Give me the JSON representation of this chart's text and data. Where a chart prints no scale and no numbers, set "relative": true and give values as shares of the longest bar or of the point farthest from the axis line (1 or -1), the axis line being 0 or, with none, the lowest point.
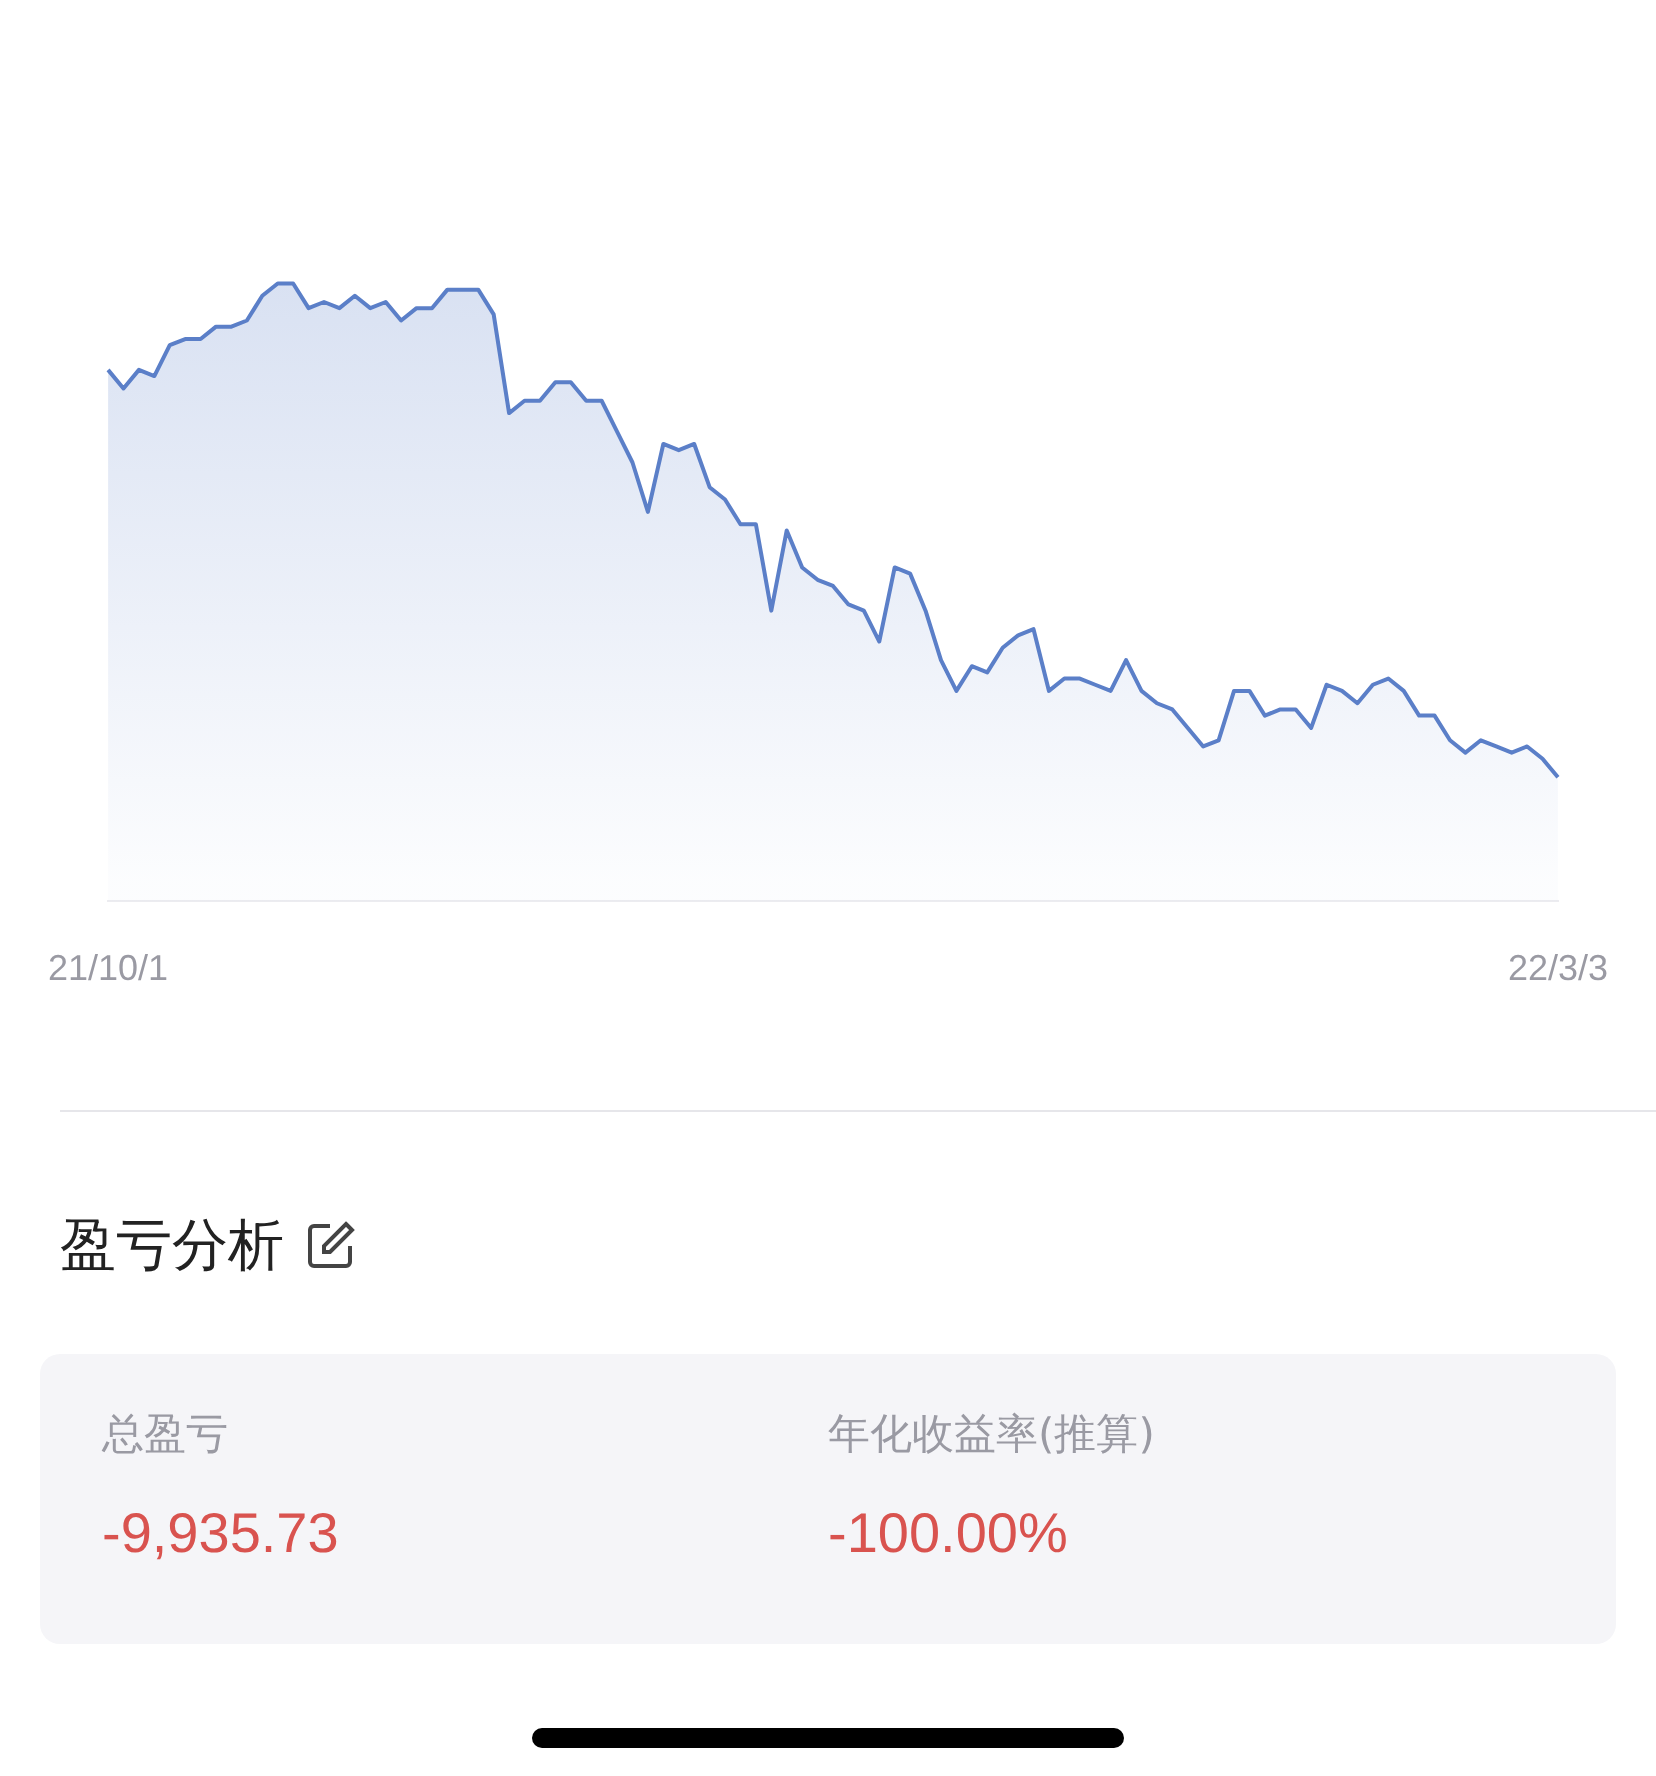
{
  "chart_data": [
    {
      "type": "area",
      "relative": true,
      "color": "#5b7fc8",
      "legend": false,
      "categories": [
        "21/10/1",
        null,
        null,
        null,
        null,
        null,
        null,
        null,
        null,
        null,
        null,
        null,
        null,
        null,
        null,
        null,
        null,
        null,
        null,
        null,
        null,
        null,
        null,
        null,
        null,
        null,
        null,
        null,
        null,
        null,
        null,
        null,
        null,
        null,
        null,
        null,
        null,
        null,
        null,
        null,
        null,
        null,
        null,
        null,
        null,
        null,
        null,
        null,
        null,
        null,
        null,
        null,
        null,
        null,
        null,
        null,
        null,
        null,
        null,
        null,
        null,
        null,
        null,
        null,
        null,
        null,
        null,
        null,
        null,
        null,
        null,
        null,
        null,
        null,
        null,
        null,
        null,
        null,
        null,
        null,
        null,
        null,
        null,
        null,
        null,
        null,
        null,
        null,
        null,
        null,
        null,
        null,
        null,
        null,
        "22/3/3"
      ],
      "values": [
        0.86,
        0.83,
        0.86,
        0.85,
        0.9,
        0.91,
        0.91,
        0.93,
        0.93,
        0.94,
        0.98,
        1.0,
        1,
        0.96,
        0.97,
        0.96,
        0.98,
        0.96,
        0.97,
        0.94,
        0.96,
        0.96,
        0.99,
        0.99,
        0.99,
        0.95,
        0.79,
        0.81,
        0.81,
        0.84,
        0.84,
        0.81,
        0.81,
        0.76,
        0.71,
        0.63,
        0.74,
        0.73,
        0.74,
        0.67,
        0.65,
        0.61,
        0.61,
        0.47,
        0.6,
        0.54,
        0.52,
        0.51,
        0.48,
        0.47,
        0.42,
        0.54,
        0.53,
        0.47,
        0.39,
        0.34,
        0.38,
        0.37,
        0.41,
        0.43,
        0.44,
        0.34,
        0.36,
        0.36,
        0.35,
        0.34,
        0.39,
        0.34,
        0.32,
        0.31,
        0.28,
        0.25,
        0.26,
        0.34,
        0.34,
        0.3,
        0.31,
        0.31,
        0.28,
        0.35,
        0.34,
        0.32,
        0.35,
        0.36,
        0.34,
        0.3,
        0.3,
        0.26,
        0.24,
        0.26,
        0.25,
        0.24,
        0.25,
        0.23,
        0.2
      ]
    },
    {
      "type": "other",
      "title": "盈亏分析",
      "annotations": [
        "总盈亏",
        "-9,935.73",
        "年化收益率(推算)",
        "-100.00%"
      ]
    }
  ]
}
